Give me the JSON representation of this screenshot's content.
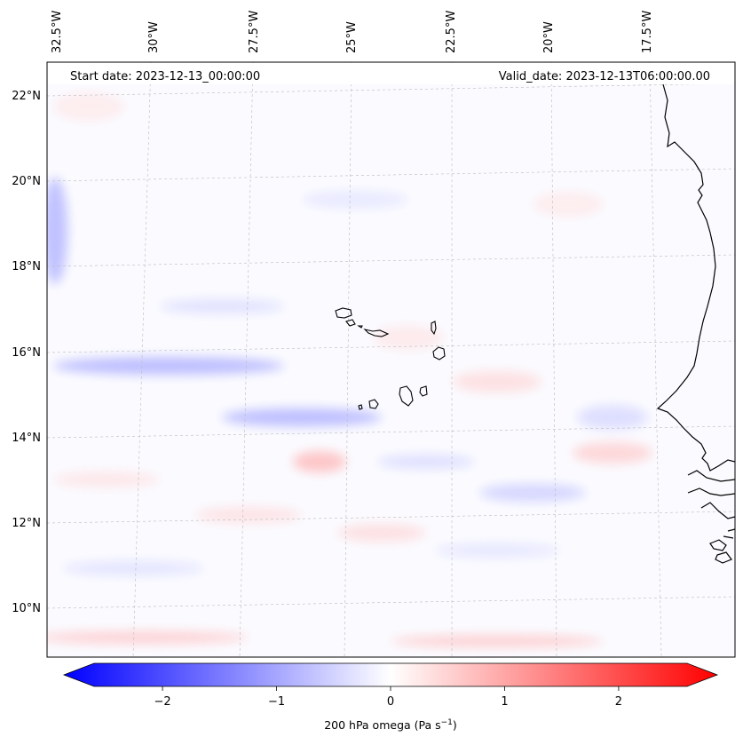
{
  "map": {
    "start_date": "Start date: 2023-12-13_00:00:00",
    "valid_date": "Valid_date: 2023-12-13T06:00:00.00",
    "field": "200 hPa omega",
    "lon_labels": [
      "32.5°W",
      "30°W",
      "27.5°W",
      "25°W",
      "22.5°W",
      "20°W",
      "17.5°W"
    ],
    "lat_labels": [
      "22°N",
      "20°N",
      "18°N",
      "16°N",
      "14°N",
      "12°N",
      "10°N"
    ],
    "colorbar": {
      "label_main": "200 hPa omega (Pa s",
      "label_sup": "−1",
      "label_end": ")",
      "min": -2.6,
      "max": 2.6,
      "ticks": [
        "−2",
        "−1",
        "0",
        "1",
        "2"
      ],
      "tick_values": [
        -2,
        -1,
        0,
        1,
        2
      ],
      "cmap": "bwr",
      "negative_color": "#0000ff",
      "positive_color": "#ff0000"
    },
    "colors": {
      "coastline": "#000000",
      "gridline": "#bbbbbb",
      "background": "#ffffff"
    }
  }
}
